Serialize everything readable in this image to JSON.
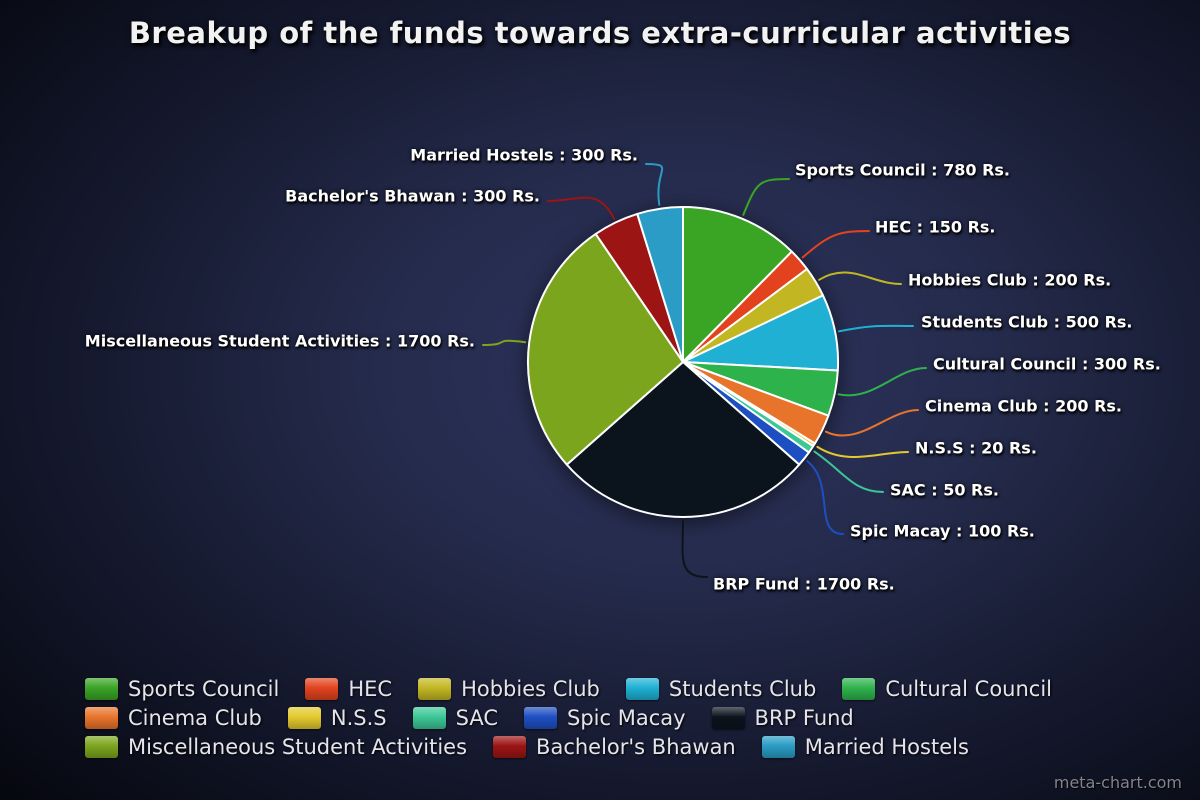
{
  "title": "Breakup of the funds towards extra-curricular activities",
  "watermark": "meta-chart.com",
  "chart_data": {
    "type": "pie",
    "title": "Breakup of the funds towards extra-curricular activities",
    "unit": "Rs.",
    "total": 6300,
    "legend_position": "bottom",
    "start_angle_deg": 0,
    "direction": "clockwise",
    "slices": [
      {
        "label": "Sports Council",
        "value": 780,
        "color": "#3aa425",
        "annotation": "Sports Council : 780 Rs."
      },
      {
        "label": "HEC",
        "value": 150,
        "color": "#e2431e",
        "annotation": "HEC : 150 Rs."
      },
      {
        "label": "Hobbies Club",
        "value": 200,
        "color": "#c2b722",
        "annotation": "Hobbies Club : 200 Rs."
      },
      {
        "label": "Students Club",
        "value": 500,
        "color": "#1fb0d4",
        "annotation": "Students Club : 500 Rs."
      },
      {
        "label": "Cultural Council",
        "value": 300,
        "color": "#2eb24c",
        "annotation": "Cultural Council : 300 Rs."
      },
      {
        "label": "Cinema Club",
        "value": 200,
        "color": "#e8742c",
        "annotation": "Cinema Club : 200 Rs."
      },
      {
        "label": "N.S.S",
        "value": 20,
        "color": "#e3c92d",
        "annotation": "N.S.S : 20 Rs."
      },
      {
        "label": "SAC",
        "value": 50,
        "color": "#3cc796",
        "annotation": "SAC : 50 Rs."
      },
      {
        "label": "Spic Macay",
        "value": 100,
        "color": "#1e4fc2",
        "annotation": "Spic Macay : 100 Rs."
      },
      {
        "label": "BRP Fund",
        "value": 1700,
        "color": "#0b141d",
        "annotation": "BRP Fund : 1700 Rs."
      },
      {
        "label": "Miscellaneous Student Activities",
        "value": 1700,
        "color": "#7ca51e",
        "annotation": "Miscellaneous Student Activities : 1700 Rs."
      },
      {
        "label": "Bachelor's Bhawan",
        "value": 300,
        "color": "#9c1414",
        "annotation": "Bachelor's Bhawan : 300 Rs."
      },
      {
        "label": "Married Hostels",
        "value": 300,
        "color": "#2a9cc5",
        "annotation": "Married Hostels : 300 Rs."
      }
    ]
  }
}
